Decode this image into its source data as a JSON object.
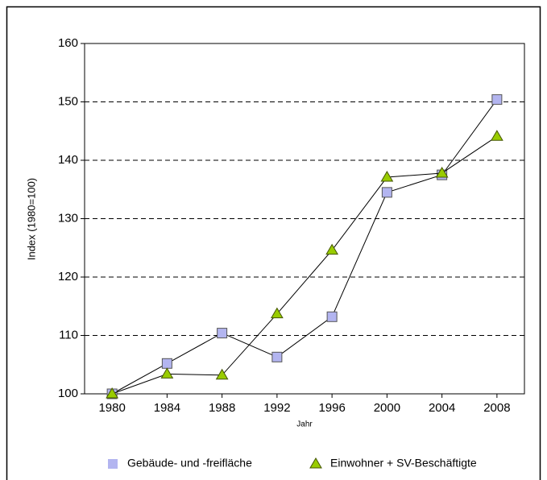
{
  "chart_data": {
    "type": "line",
    "x_label": "Jahr",
    "y_label": "Index (1980=100)",
    "x": [
      1980,
      1984,
      1988,
      1992,
      1996,
      2000,
      2004,
      2008
    ],
    "series": [
      {
        "name": "Gebäude- und -freifläche",
        "color": "#b3b5f0",
        "marker": "square",
        "values": [
          100,
          105.2,
          110.4,
          106.3,
          113.2,
          134.5,
          137.5,
          150.4
        ]
      },
      {
        "name": "Einwohner + SV-Beschäftigte",
        "color": "#99cc00",
        "marker": "triangle",
        "values": [
          100,
          103.4,
          103.2,
          113.7,
          124.6,
          137.1,
          137.8,
          144.1
        ]
      }
    ],
    "xlim": [
      1978,
      2010
    ],
    "xticks": [
      1980,
      1984,
      1988,
      1992,
      1996,
      2000,
      2004,
      2008
    ],
    "ylim": [
      100,
      160
    ],
    "yticks": [
      100,
      110,
      120,
      130,
      140,
      150,
      160
    ],
    "grid": true,
    "legend": "bottom"
  }
}
